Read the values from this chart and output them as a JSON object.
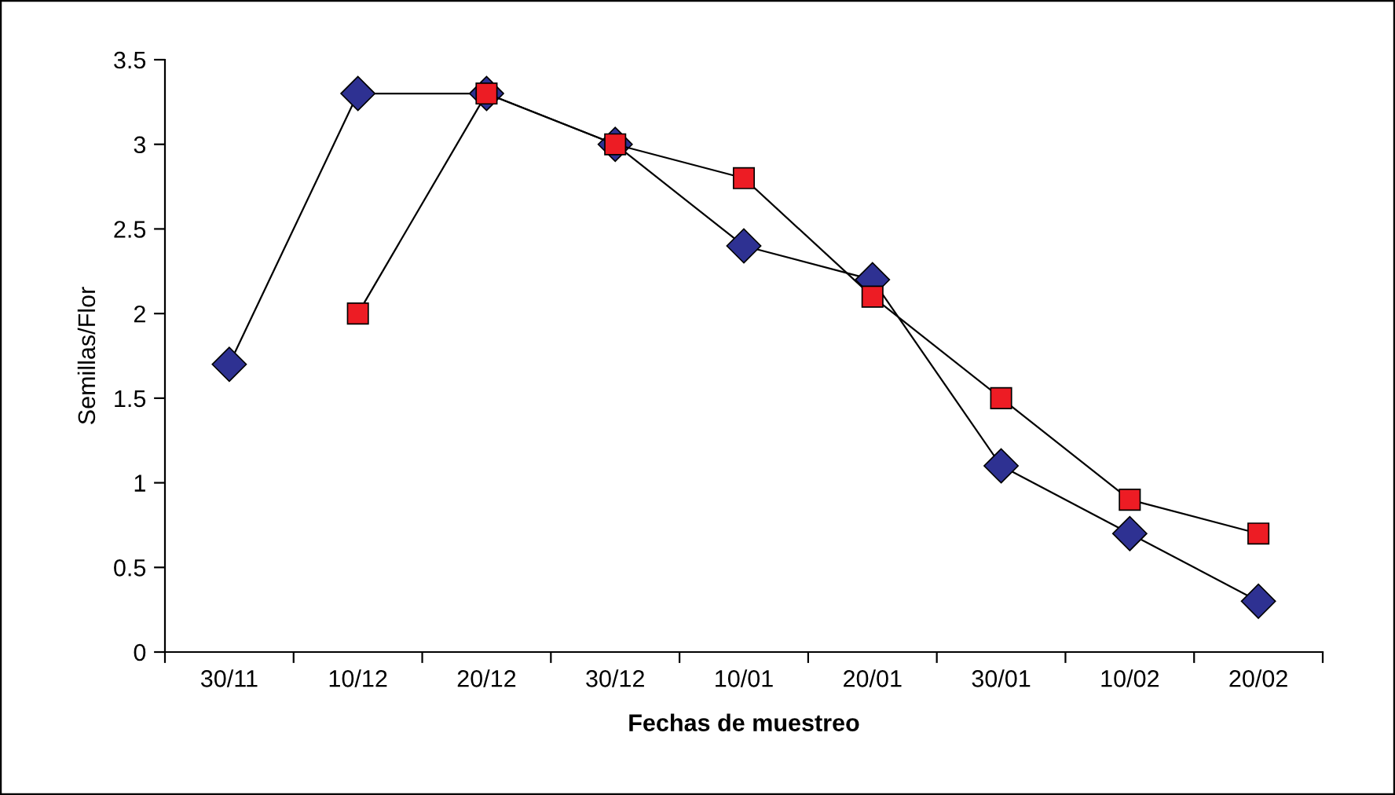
{
  "chart_data": {
    "type": "line",
    "xlabel": "Fechas de muestreo",
    "ylabel": "Semillas/Flor",
    "categories": [
      "30/11",
      "10/12",
      "20/12",
      "30/12",
      "10/01",
      "20/01",
      "30/01",
      "10/02",
      "20/02"
    ],
    "series": [
      {
        "color": "#2e3192",
        "marker": "diamond",
        "values": [
          1.7,
          3.3,
          3.3,
          3.0,
          2.4,
          2.2,
          1.1,
          0.7,
          0.3
        ]
      },
      {
        "color": "#ed1c24",
        "marker": "square",
        "values": [
          null,
          2.0,
          3.3,
          3.0,
          2.8,
          2.1,
          1.5,
          0.9,
          0.7
        ]
      }
    ],
    "ylim": [
      0,
      3.5
    ],
    "yticks": [
      0,
      0.5,
      1,
      1.5,
      2,
      2.5,
      3,
      3.5
    ],
    "grid": false,
    "legend": false
  }
}
